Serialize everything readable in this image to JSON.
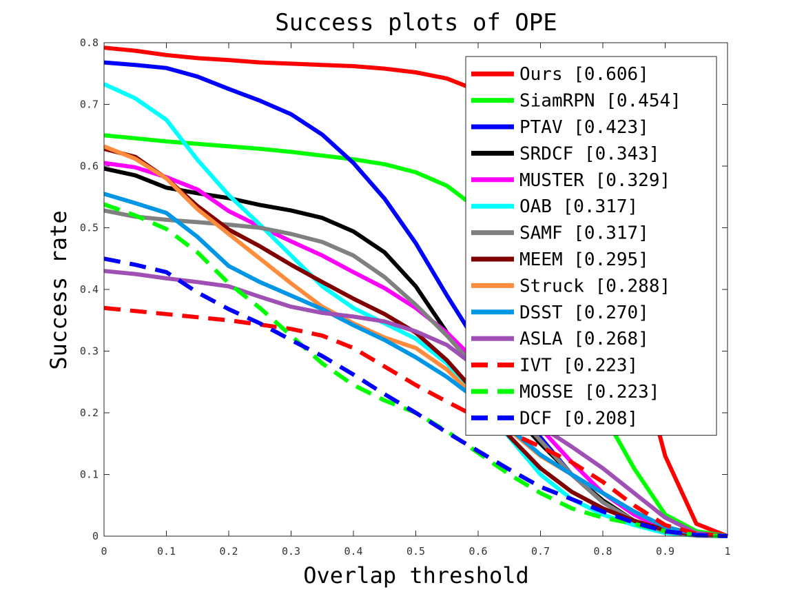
{
  "chart_data": {
    "type": "line",
    "title": "Success plots of OPE",
    "xlabel": "Overlap threshold",
    "ylabel": "Success rate",
    "xlim": [
      0,
      1
    ],
    "ylim": [
      0,
      0.8
    ],
    "x_ticks": [
      "0",
      "0.1",
      "0.2",
      "0.3",
      "0.4",
      "0.5",
      "0.6",
      "0.7",
      "0.8",
      "0.9",
      "1"
    ],
    "y_ticks": [
      "0",
      "0.1",
      "0.2",
      "0.3",
      "0.4",
      "0.5",
      "0.6",
      "0.7",
      "0.8"
    ],
    "grid": false,
    "legend_position": "top-right",
    "x": [
      0,
      0.05,
      0.1,
      0.15,
      0.2,
      0.25,
      0.3,
      0.35,
      0.4,
      0.45,
      0.5,
      0.55,
      0.6,
      0.65,
      0.7,
      0.75,
      0.8,
      0.85,
      0.9,
      0.95,
      1
    ],
    "series": [
      {
        "name": "Ours [0.606]",
        "color": "#ff0000",
        "dash": false,
        "values": [
          0.792,
          0.787,
          0.78,
          0.775,
          0.772,
          0.768,
          0.766,
          0.764,
          0.762,
          0.758,
          0.752,
          0.742,
          0.722,
          0.69,
          0.64,
          0.56,
          0.45,
          0.32,
          0.13,
          0.02,
          0.0
        ]
      },
      {
        "name": "SiamRPN [0.454]",
        "color": "#00ff00",
        "dash": false,
        "values": [
          0.65,
          0.645,
          0.64,
          0.636,
          0.632,
          0.628,
          0.623,
          0.617,
          0.611,
          0.603,
          0.59,
          0.568,
          0.53,
          0.47,
          0.39,
          0.3,
          0.2,
          0.11,
          0.035,
          0.008,
          0.0
        ]
      },
      {
        "name": "PTAV [0.423]",
        "color": "#0000ff",
        "dash": false,
        "values": [
          0.768,
          0.764,
          0.759,
          0.745,
          0.725,
          0.706,
          0.684,
          0.651,
          0.605,
          0.547,
          0.475,
          0.39,
          0.31,
          0.23,
          0.16,
          0.1,
          0.055,
          0.025,
          0.008,
          0.002,
          0.0
        ]
      },
      {
        "name": "SRDCF [0.343]",
        "color": "#000000",
        "dash": false,
        "values": [
          0.596,
          0.585,
          0.565,
          0.556,
          0.548,
          0.537,
          0.528,
          0.516,
          0.494,
          0.46,
          0.405,
          0.33,
          0.265,
          0.205,
          0.15,
          0.1,
          0.058,
          0.025,
          0.007,
          0.001,
          0.0
        ]
      },
      {
        "name": "MUSTER [0.329]",
        "color": "#ff00ff",
        "dash": false,
        "values": [
          0.605,
          0.598,
          0.582,
          0.562,
          0.527,
          0.502,
          0.478,
          0.455,
          0.428,
          0.402,
          0.37,
          0.33,
          0.28,
          0.23,
          0.175,
          0.12,
          0.07,
          0.035,
          0.01,
          0.002,
          0.0
        ]
      },
      {
        "name": "OAB [0.317]",
        "color": "#00ffff",
        "dash": false,
        "values": [
          0.733,
          0.71,
          0.675,
          0.61,
          0.553,
          0.505,
          0.455,
          0.405,
          0.37,
          0.345,
          0.32,
          0.28,
          0.22,
          0.16,
          0.1,
          0.06,
          0.035,
          0.018,
          0.005,
          0.001,
          0.0
        ]
      },
      {
        "name": "SAMF [0.317]",
        "color": "#808080",
        "dash": false,
        "values": [
          0.528,
          0.518,
          0.513,
          0.509,
          0.505,
          0.5,
          0.49,
          0.477,
          0.455,
          0.42,
          0.375,
          0.325,
          0.268,
          0.21,
          0.155,
          0.1,
          0.055,
          0.025,
          0.007,
          0.001,
          0.0
        ]
      },
      {
        "name": "MEEM [0.295]",
        "color": "#800000",
        "dash": false,
        "values": [
          0.628,
          0.615,
          0.58,
          0.535,
          0.497,
          0.47,
          0.44,
          0.412,
          0.385,
          0.36,
          0.33,
          0.285,
          0.228,
          0.162,
          0.11,
          0.072,
          0.045,
          0.025,
          0.01,
          0.002,
          0.0
        ]
      },
      {
        "name": "Struck [0.288]",
        "color": "#ff8c3c",
        "dash": false,
        "values": [
          0.632,
          0.612,
          0.58,
          0.53,
          0.49,
          0.45,
          0.41,
          0.372,
          0.345,
          0.322,
          0.305,
          0.27,
          0.22,
          0.172,
          0.13,
          0.1,
          0.07,
          0.04,
          0.015,
          0.003,
          0.0
        ]
      },
      {
        "name": "DSST [0.270]",
        "color": "#0096e6",
        "dash": false,
        "values": [
          0.555,
          0.54,
          0.524,
          0.485,
          0.438,
          0.412,
          0.39,
          0.368,
          0.342,
          0.318,
          0.29,
          0.258,
          0.22,
          0.175,
          0.132,
          0.1,
          0.07,
          0.04,
          0.015,
          0.003,
          0.0
        ]
      },
      {
        "name": "ASLA [0.268]",
        "color": "#a050b4",
        "dash": false,
        "values": [
          0.43,
          0.425,
          0.418,
          0.412,
          0.405,
          0.388,
          0.372,
          0.362,
          0.356,
          0.348,
          0.332,
          0.31,
          0.272,
          0.225,
          0.178,
          0.145,
          0.11,
          0.07,
          0.03,
          0.005,
          0.0
        ]
      },
      {
        "name": "IVT [0.223]",
        "color": "#ff0000",
        "dash": true,
        "values": [
          0.37,
          0.365,
          0.36,
          0.355,
          0.35,
          0.343,
          0.336,
          0.325,
          0.305,
          0.275,
          0.245,
          0.218,
          0.192,
          0.168,
          0.145,
          0.12,
          0.088,
          0.05,
          0.018,
          0.004,
          0.0
        ]
      },
      {
        "name": "MOSSE [0.223]",
        "color": "#00ff00",
        "dash": true,
        "values": [
          0.538,
          0.52,
          0.498,
          0.46,
          0.41,
          0.37,
          0.325,
          0.28,
          0.245,
          0.22,
          0.2,
          0.17,
          0.135,
          0.1,
          0.07,
          0.045,
          0.03,
          0.02,
          0.008,
          0.002,
          0.0
        ]
      },
      {
        "name": "DCF [0.208]",
        "color": "#0000ff",
        "dash": true,
        "values": [
          0.45,
          0.44,
          0.428,
          0.395,
          0.368,
          0.345,
          0.318,
          0.292,
          0.262,
          0.23,
          0.2,
          0.168,
          0.138,
          0.108,
          0.08,
          0.06,
          0.04,
          0.022,
          0.008,
          0.002,
          0.0
        ]
      }
    ]
  }
}
